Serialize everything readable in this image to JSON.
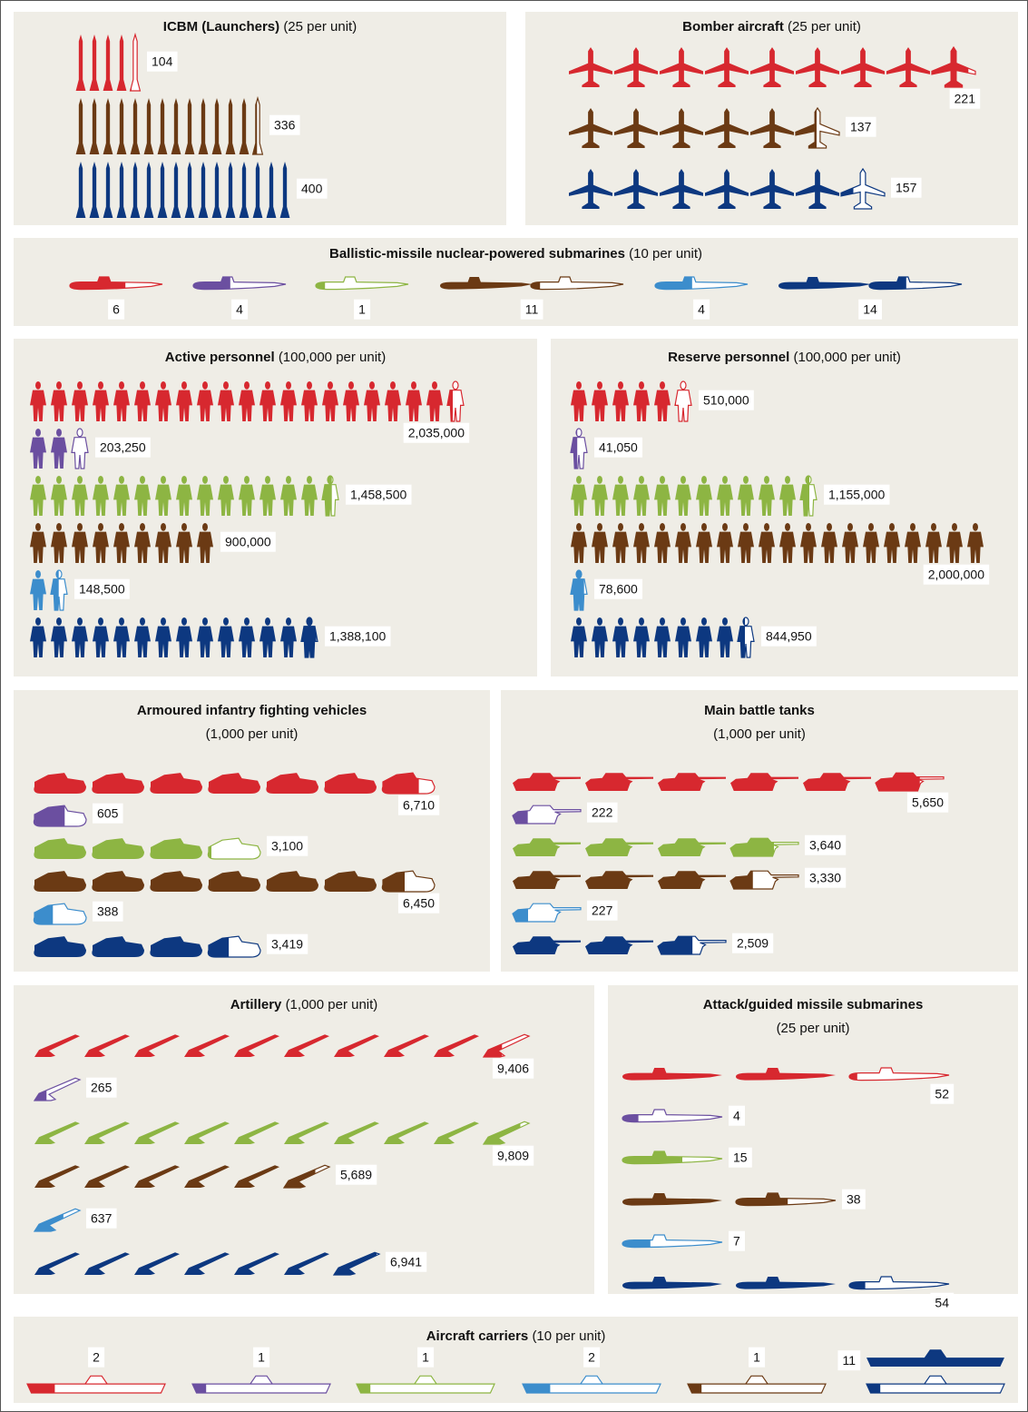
{
  "chart_data": [
    {
      "type": "pictogram",
      "icon": "missile",
      "title": "ICBM (Launchers)",
      "subtitle": "(25 per unit)",
      "unit": 25,
      "colors": [
        "#d7282f",
        "#6b3a14",
        "#0d3880"
      ],
      "values": [
        104,
        336,
        400
      ]
    },
    {
      "type": "pictogram",
      "icon": "plane",
      "title": "Bomber aircraft",
      "subtitle": "(25 per unit)",
      "unit": 25,
      "colors": [
        "#d7282f",
        "#6b3a14",
        "#0d3880"
      ],
      "values": [
        221,
        137,
        157
      ]
    },
    {
      "type": "pictogram",
      "icon": "sub",
      "title": "Ballistic-missile nuclear-powered submarines",
      "subtitle": "(10 per unit)",
      "unit": 10,
      "colors": [
        "#d7282f",
        "#6b4fa0",
        "#8db543",
        "#6b3a14",
        "#3c8dcc",
        "#0d3880"
      ],
      "values": [
        6,
        4,
        1,
        11,
        4,
        14
      ]
    },
    {
      "type": "pictogram",
      "icon": "soldier",
      "title": "Active personnel",
      "subtitle": "(100,000 per unit)",
      "unit": 100000,
      "colors": [
        "#d7282f",
        "#6b4fa0",
        "#8db543",
        "#6b3a14",
        "#3c8dcc",
        "#0d3880"
      ],
      "values": [
        2035000,
        203250,
        1458500,
        900000,
        148500,
        1388100
      ],
      "value_labels": [
        "2,035,000",
        "203,250",
        "1,458,500",
        "900,000",
        "148,500",
        "1,388,100"
      ]
    },
    {
      "type": "pictogram",
      "icon": "soldier",
      "title": "Reserve personnel",
      "subtitle": "(100,000 per unit)",
      "unit": 100000,
      "colors": [
        "#d7282f",
        "#6b4fa0",
        "#8db543",
        "#6b3a14",
        "#3c8dcc",
        "#0d3880"
      ],
      "values": [
        510000,
        41050,
        1155000,
        2000000,
        78600,
        844950
      ],
      "value_labels": [
        "510,000",
        "41,050",
        "1,155,000",
        "2,000,000",
        "78,600",
        "844,950"
      ]
    },
    {
      "type": "pictogram",
      "icon": "vehicle",
      "title": "Armoured infantry fighting vehicles",
      "subtitle": "(1,000 per unit)",
      "unit": 1000,
      "colors": [
        "#d7282f",
        "#6b4fa0",
        "#8db543",
        "#6b3a14",
        "#3c8dcc",
        "#0d3880"
      ],
      "values": [
        6710,
        605,
        3100,
        6450,
        388,
        3419
      ],
      "value_labels": [
        "6,710",
        "605",
        "3,100",
        "6,450",
        "388",
        "3,419"
      ]
    },
    {
      "type": "pictogram",
      "icon": "tank",
      "title": "Main battle tanks",
      "subtitle": "(1,000 per unit)",
      "unit": 1000,
      "colors": [
        "#d7282f",
        "#6b4fa0",
        "#8db543",
        "#6b3a14",
        "#3c8dcc",
        "#0d3880"
      ],
      "values": [
        5650,
        222,
        3640,
        3330,
        227,
        2509
      ],
      "value_labels": [
        "5,650",
        "222",
        "3,640",
        "3,330",
        "227",
        "2,509"
      ]
    },
    {
      "type": "pictogram",
      "icon": "artillery",
      "title": "Artillery",
      "subtitle": "(1,000 per unit)",
      "unit": 1000,
      "colors": [
        "#d7282f",
        "#6b4fa0",
        "#8db543",
        "#6b3a14",
        "#3c8dcc",
        "#0d3880"
      ],
      "values": [
        9406,
        265,
        9809,
        5689,
        637,
        6941
      ],
      "value_labels": [
        "9,406",
        "265",
        "9,809",
        "5,689",
        "637",
        "6,941"
      ]
    },
    {
      "type": "pictogram",
      "icon": "sub",
      "title": "Attack/guided missile submarines",
      "subtitle": "(25 per unit)",
      "unit": 25,
      "colors": [
        "#d7282f",
        "#6b4fa0",
        "#8db543",
        "#6b3a14",
        "#3c8dcc",
        "#0d3880"
      ],
      "values": [
        52,
        4,
        15,
        38,
        7,
        54
      ]
    },
    {
      "type": "pictogram",
      "icon": "carrier",
      "title": "Aircraft carriers",
      "subtitle": "(10 per unit)",
      "unit": 10,
      "colors": [
        "#d7282f",
        "#6b4fa0",
        "#8db543",
        "#3c8dcc",
        "#6b3a14",
        "#0d3880"
      ],
      "values": [
        2,
        1,
        1,
        2,
        1,
        11
      ]
    }
  ]
}
